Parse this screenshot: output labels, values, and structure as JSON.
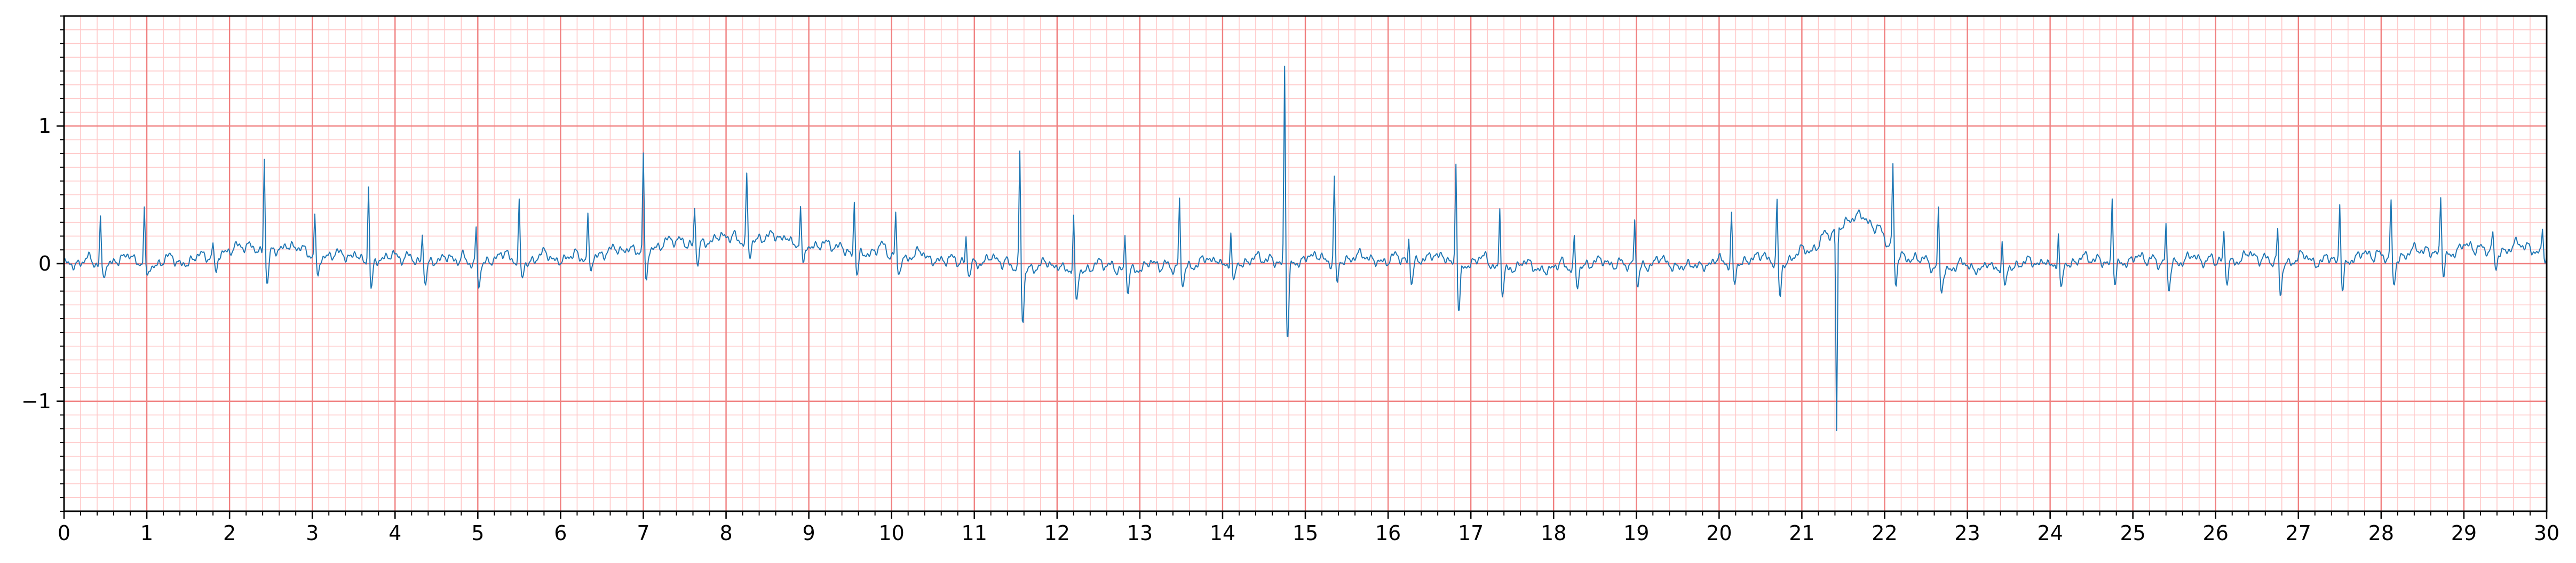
{
  "chart_data": {
    "type": "line",
    "title": "",
    "xlabel": "",
    "ylabel": "",
    "xlim": [
      0,
      30
    ],
    "ylim": [
      -1.8,
      1.8
    ],
    "x_ticks": [
      0,
      1,
      2,
      3,
      4,
      5,
      6,
      7,
      8,
      9,
      10,
      11,
      12,
      13,
      14,
      15,
      16,
      17,
      18,
      19,
      20,
      21,
      22,
      23,
      24,
      25,
      26,
      27,
      28,
      29,
      30
    ],
    "x_tick_labels": [
      "0",
      "1",
      "2",
      "3",
      "4",
      "5",
      "6",
      "7",
      "8",
      "9",
      "10",
      "11",
      "12",
      "13",
      "14",
      "15",
      "16",
      "17",
      "18",
      "19",
      "20",
      "21",
      "22",
      "23",
      "24",
      "25",
      "26",
      "27",
      "28",
      "29",
      "30"
    ],
    "y_ticks": [
      -1,
      0,
      1
    ],
    "y_tick_labels": [
      "−1",
      "0",
      "1"
    ],
    "x_minor_step": 0.2,
    "y_minor_step": 0.1,
    "grid": true,
    "grid_major_color": "#f08080",
    "grid_minor_color": "#ffc8c8",
    "line_color": "#1f77b4",
    "sample_rate": 100,
    "series": [
      {
        "beats": [
          {
            "t": 0.44,
            "r": 0.35,
            "s": -0.1,
            "st": 0.0
          },
          {
            "t": 0.97,
            "r": 0.4,
            "s": -0.1,
            "st": -0.02
          },
          {
            "t": 1.8,
            "r": 0.2,
            "s": -0.15,
            "st": 0.08
          },
          {
            "t": 2.42,
            "r": 0.82,
            "s": -0.25,
            "st": 0.1
          },
          {
            "t": 3.03,
            "r": 0.35,
            "s": -0.15,
            "st": 0.02
          },
          {
            "t": 3.68,
            "r": 0.58,
            "s": -0.2,
            "st": 0.02
          },
          {
            "t": 4.33,
            "r": 0.25,
            "s": -0.15,
            "st": 0.0
          },
          {
            "t": 4.98,
            "r": 0.26,
            "s": -0.15,
            "st": 0.0
          },
          {
            "t": 5.5,
            "r": 0.45,
            "s": -0.12,
            "st": 0.02
          },
          {
            "t": 6.33,
            "r": 0.35,
            "s": -0.1,
            "st": 0.05
          },
          {
            "t": 7.0,
            "r": 0.85,
            "s": -0.25,
            "st": 0.12
          },
          {
            "t": 7.62,
            "r": 0.45,
            "s": -0.15,
            "st": 0.15
          },
          {
            "t": 8.25,
            "r": 0.66,
            "s": -0.12,
            "st": 0.18
          },
          {
            "t": 8.9,
            "r": 0.42,
            "s": -0.15,
            "st": 0.1
          },
          {
            "t": 9.55,
            "r": 0.45,
            "s": -0.15,
            "st": 0.06
          },
          {
            "t": 10.05,
            "r": 0.35,
            "s": -0.12,
            "st": 0.02
          },
          {
            "t": 10.9,
            "r": 0.2,
            "s": -0.1,
            "st": 0.0
          },
          {
            "t": 11.55,
            "r": 0.82,
            "s": -0.4,
            "st": -0.05
          },
          {
            "t": 12.2,
            "r": 0.35,
            "s": -0.25,
            "st": -0.05
          },
          {
            "t": 12.82,
            "r": 0.22,
            "s": -0.15,
            "st": -0.05
          },
          {
            "t": 13.48,
            "r": 0.5,
            "s": -0.15,
            "st": -0.02
          },
          {
            "t": 14.1,
            "r": 0.25,
            "s": -0.15,
            "st": 0.0
          },
          {
            "t": 14.75,
            "r": 1.5,
            "s": -0.55,
            "st": 0.0
          },
          {
            "t": 15.35,
            "r": 0.65,
            "s": -0.15,
            "st": 0.02
          },
          {
            "t": 16.25,
            "r": 0.2,
            "s": -0.15,
            "st": 0.02
          },
          {
            "t": 16.82,
            "r": 0.77,
            "s": -0.35,
            "st": -0.02
          },
          {
            "t": 17.35,
            "r": 0.4,
            "s": -0.2,
            "st": -0.05
          },
          {
            "t": 18.25,
            "r": 0.2,
            "s": -0.15,
            "st": -0.02
          },
          {
            "t": 18.98,
            "r": 0.35,
            "s": -0.15,
            "st": -0.02
          },
          {
            "t": 20.15,
            "r": 0.38,
            "s": -0.15,
            "st": 0.0
          },
          {
            "t": 20.7,
            "r": 0.47,
            "s": -0.25,
            "st": 0.0
          },
          {
            "t": 21.42,
            "r": -1.05,
            "s": 0.0,
            "st": 0.4
          },
          {
            "t": 22.1,
            "r": 0.6,
            "s": -0.25,
            "st": -0.05
          },
          {
            "t": 22.65,
            "r": 0.42,
            "s": -0.15,
            "st": -0.05
          },
          {
            "t": 23.42,
            "r": 0.18,
            "s": -0.15,
            "st": -0.03
          },
          {
            "t": 24.1,
            "r": 0.25,
            "s": -0.2,
            "st": 0.0
          },
          {
            "t": 24.75,
            "r": 0.5,
            "s": -0.15,
            "st": 0.0
          },
          {
            "t": 25.4,
            "r": 0.3,
            "s": -0.2,
            "st": 0.0
          },
          {
            "t": 26.1,
            "r": 0.25,
            "s": -0.15,
            "st": 0.02
          },
          {
            "t": 26.75,
            "r": 0.25,
            "s": -0.25,
            "st": 0.0
          },
          {
            "t": 27.5,
            "r": 0.48,
            "s": -0.2,
            "st": 0.02
          },
          {
            "t": 28.12,
            "r": 0.48,
            "s": -0.2,
            "st": 0.05
          },
          {
            "t": 28.72,
            "r": 0.52,
            "s": -0.15,
            "st": 0.08
          },
          {
            "t": 29.35,
            "r": 0.25,
            "s": -0.15,
            "st": 0.1
          },
          {
            "t": 29.95,
            "r": 0.25,
            "s": -0.05,
            "st": 0.05
          }
        ]
      }
    ]
  }
}
